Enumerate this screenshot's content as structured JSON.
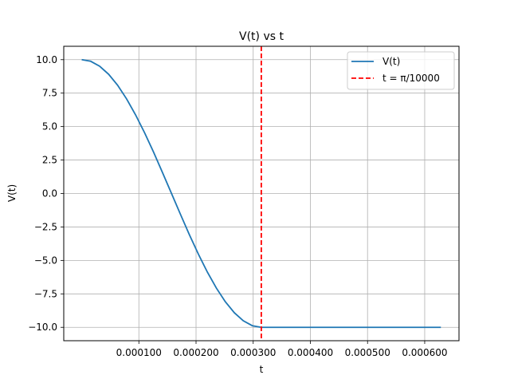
{
  "chart_data": {
    "type": "line",
    "title": "V(t) vs t",
    "xlabel": "t",
    "ylabel": "V(t)",
    "xlim": [
      -3.14e-05,
      0.00066
    ],
    "ylim": [
      -11.0,
      11.0
    ],
    "x_ticks": [
      0.0001,
      0.0002,
      0.0003,
      0.0004,
      0.0005,
      0.0006
    ],
    "x_tick_labels": [
      "0.000100",
      "0.000200",
      "0.000300",
      "0.000400",
      "0.000500",
      "0.000600"
    ],
    "y_ticks": [
      10.0,
      7.5,
      5.0,
      2.5,
      0.0,
      -2.5,
      -5.0,
      -7.5,
      -10.0
    ],
    "y_tick_labels": [
      "10.0",
      "7.5",
      "5.0",
      "2.5",
      "0.0",
      "−2.5",
      "−5.0",
      "−7.5",
      "−10.0"
    ],
    "grid": true,
    "legend_position": "upper-right",
    "series": [
      {
        "name": "V(t)",
        "color": "#1f77b4",
        "style": "solid",
        "x": [
          0,
          1.57e-05,
          3.14e-05,
          4.71e-05,
          6.28e-05,
          7.85e-05,
          9.42e-05,
          0.00011,
          0.0001257,
          0.0001414,
          0.0001571,
          0.0001728,
          0.0001885,
          0.0002042,
          0.0002199,
          0.0002356,
          0.0002513,
          0.000267,
          0.0002827,
          0.0002985,
          0.0003142,
          0.00035,
          0.0004,
          0.00045,
          0.0005,
          0.00055,
          0.0006,
          0.0006283
        ],
        "y": [
          10.0,
          9.88,
          9.51,
          8.91,
          8.09,
          7.07,
          5.88,
          4.54,
          3.09,
          1.56,
          0.0,
          -1.56,
          -3.09,
          -4.54,
          -5.88,
          -7.07,
          -8.09,
          -8.91,
          -9.51,
          -9.88,
          -10.0,
          -10.0,
          -10.0,
          -10.0,
          -10.0,
          -10.0,
          -10.0,
          -10.0
        ]
      },
      {
        "name": "t = π/10000",
        "color": "#ff0000",
        "style": "dashed",
        "vertical_line_x": 0.000314159
      }
    ]
  }
}
